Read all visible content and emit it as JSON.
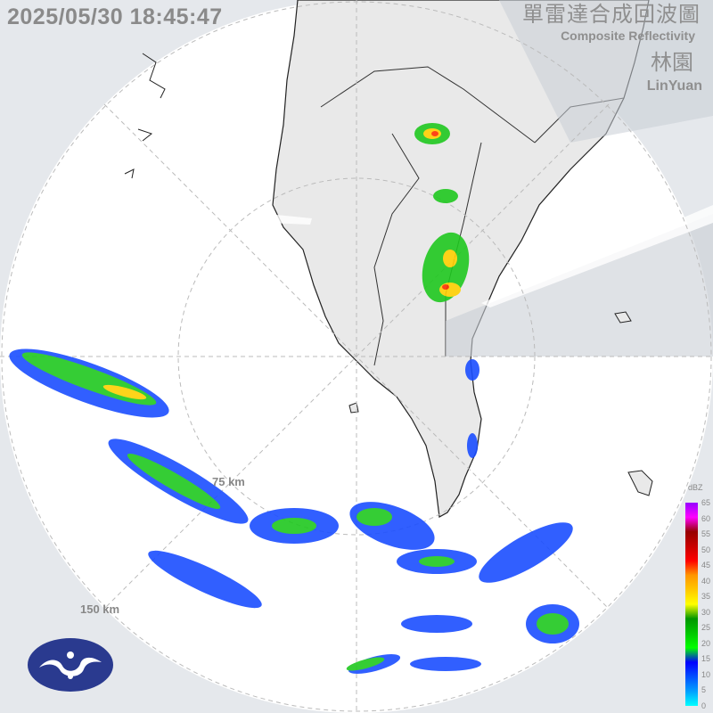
{
  "header": {
    "timestamp": "2025/05/30 18:45:47",
    "title_zh": "單雷達合成回波圖",
    "title_en": "Composite Reflectivity",
    "station_zh": "林園",
    "station_en": "LinYuan"
  },
  "rings": [
    {
      "label": "75 km"
    },
    {
      "label": "150 km"
    }
  ],
  "legend": {
    "unit": "dBZ",
    "ticks": [
      "65",
      "60",
      "55",
      "50",
      "45",
      "40",
      "35",
      "30",
      "25",
      "20",
      "15",
      "10",
      "5",
      "0"
    ],
    "colors": [
      "#00ffff",
      "#00a0ff",
      "#0050ff",
      "#0000ff",
      "#00ff00",
      "#00c800",
      "#009600",
      "#ffff00",
      "#ffc800",
      "#ff9600",
      "#ff0000",
      "#c80000",
      "#960000",
      "#ff00ff",
      "#9600ff"
    ]
  },
  "logo": {
    "name": "cwa-logo-icon",
    "color": "#2a3a8f"
  }
}
